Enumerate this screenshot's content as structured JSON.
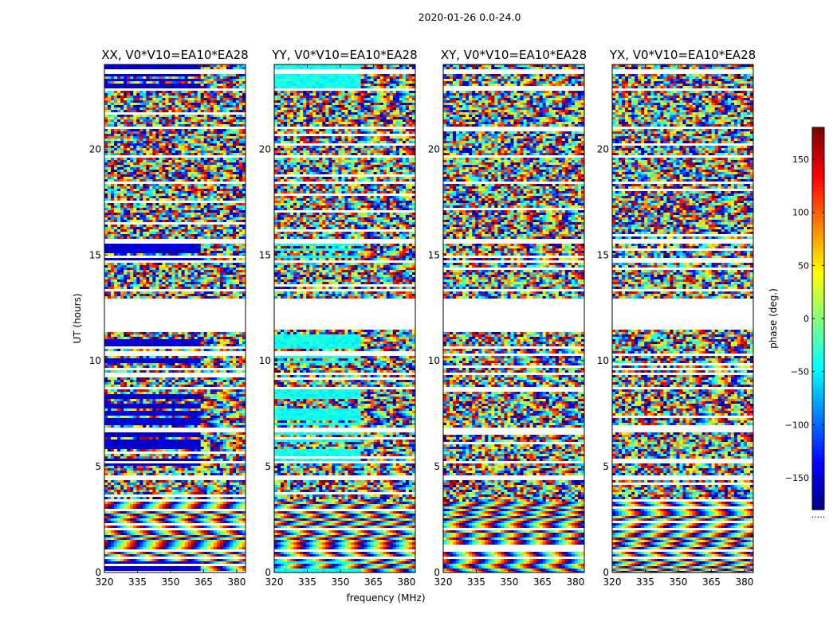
{
  "figure": {
    "title": "2020-01-26 0.0-24.0"
  },
  "chart_data": {
    "type": "heatmap",
    "title": "2020-01-26 0.0-24.0",
    "xlabel": "frequency (MHz)",
    "ylabel": "UT (hours)",
    "xlim": [
      320,
      384
    ],
    "ylim": [
      0,
      24
    ],
    "xticks": [
      320,
      335,
      350,
      365,
      380
    ],
    "yticks": [
      0,
      5,
      10,
      15,
      20
    ],
    "colormap": "jet",
    "panels": [
      {
        "name": "XX",
        "title": "XX, V0*V10=EA10*EA28",
        "coherent_until_mhz": 363,
        "coherent_phase": -150
      },
      {
        "name": "YY",
        "title": "YY, V0*V10=EA10*EA28",
        "coherent_until_mhz": 360,
        "coherent_phase": -40
      },
      {
        "name": "XY",
        "title": "XY, V0*V10=EA10*EA28",
        "coherent_until_mhz": null,
        "coherent_phase": null
      },
      {
        "name": "YX",
        "title": "YX, V0*V10=EA10*EA28",
        "coherent_until_mhz": null,
        "coherent_phase": null
      }
    ],
    "flagged_ut_ranges": [
      [
        11.5,
        12.9
      ],
      [
        15.55,
        15.75
      ],
      [
        8.6,
        8.8
      ],
      [
        6.65,
        6.8
      ],
      [
        4.4,
        4.55
      ],
      [
        2.0,
        2.1
      ],
      [
        1.6,
        1.7
      ],
      [
        23.6,
        23.75
      ],
      [
        22.8,
        22.9
      ],
      [
        20.95,
        21.05
      ],
      [
        18.4,
        18.5
      ],
      [
        14.6,
        14.7
      ],
      [
        10.2,
        10.3
      ],
      [
        5.2,
        5.3
      ],
      [
        0.6,
        0.7
      ],
      [
        1.0,
        1.08
      ],
      [
        3.3,
        3.4
      ],
      [
        17.2,
        17.28
      ],
      [
        19.6,
        19.7
      ],
      [
        13.3,
        13.4
      ],
      [
        9.35,
        9.45
      ]
    ],
    "colorbar": {
      "label": "phase (deg.)",
      "range": [
        -180,
        180
      ],
      "ticks": [
        150,
        100,
        50,
        0,
        -50,
        -100,
        -150
      ],
      "tick_labels": [
        "150",
        "100",
        "50",
        "0",
        "−50",
        "−100",
        "−150"
      ],
      "footer_text": "....."
    }
  }
}
